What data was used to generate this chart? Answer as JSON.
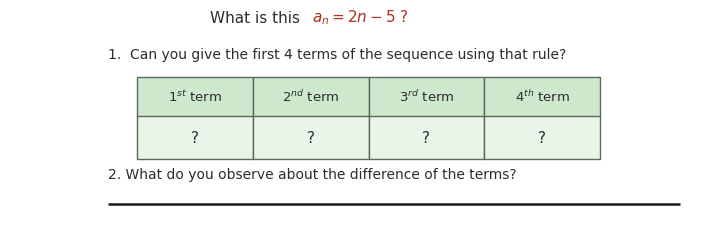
{
  "bg_color": "#ffffff",
  "text_color": "#2d2d2d",
  "formula_color": "#b03020",
  "line_color": "#1a1a1a",
  "table_border_color": "#5a6a5a",
  "table_header_bg": "#cde8cd",
  "table_cell_bg": "#e8f5e8",
  "question1": "1.  Can you give the first 4 terms of the sequence using that rule?",
  "question2": "2. What do you observe about the difference of the terms?",
  "col_values": [
    "?",
    "?",
    "?",
    "?"
  ],
  "header_labels": [
    "1$^{st}$ term",
    "2$^{nd}$ term",
    "3$^{rd}$ term",
    "4$^{th}$ term"
  ],
  "title_prefix": "What is this  ",
  "title_formula": "$a_n = 2n - 5$ ?",
  "fig_width": 7.19,
  "fig_height": 2.28,
  "dpi": 100
}
